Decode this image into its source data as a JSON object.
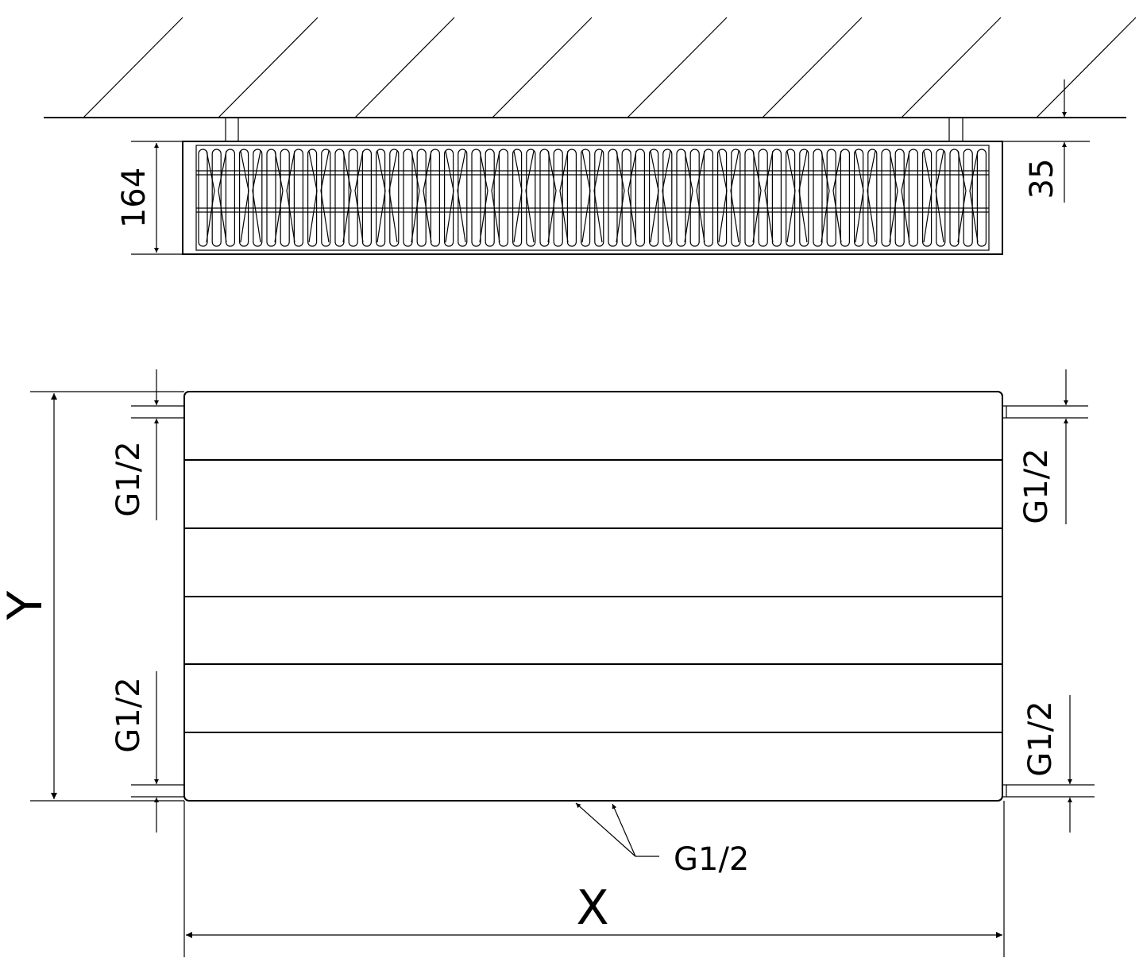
{
  "top_view": {
    "depth_label": "164",
    "wall_gap_label": "35"
  },
  "front_view": {
    "height_label": "Y",
    "width_label": "X",
    "connections": {
      "left_top": "G1/2",
      "left_bottom": "G1/2",
      "right_top": "G1/2",
      "right_bottom": "G1/2",
      "bottom": "G1/2"
    }
  }
}
